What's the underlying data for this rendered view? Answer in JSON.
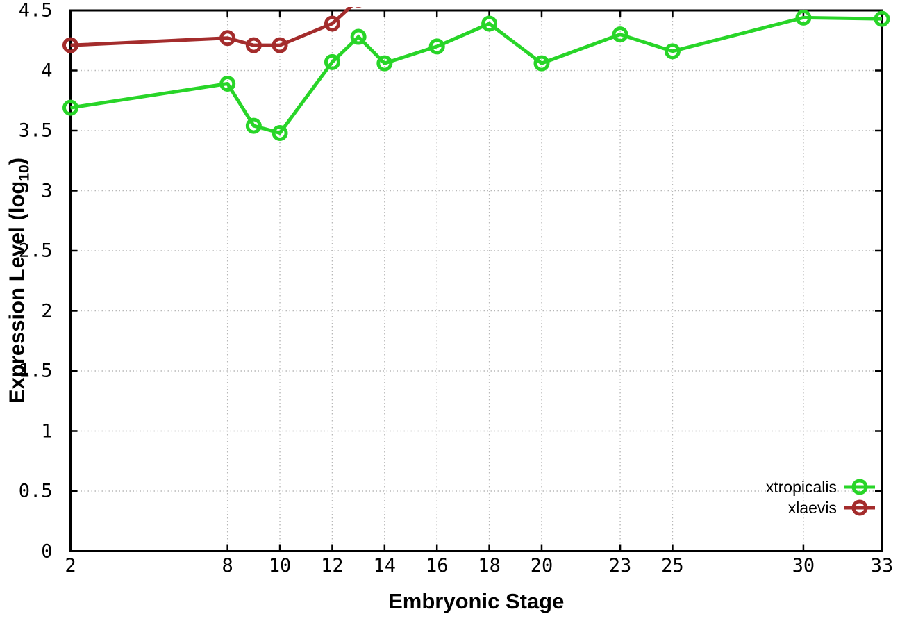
{
  "figure": {
    "x_axis_title": "Embryonic Stage",
    "y_axis_title_prefix": "Expression Level (log",
    "y_axis_title_sub": "10",
    "y_axis_title_suffix": ")"
  },
  "chart_data": {
    "type": "line",
    "title": "",
    "xlabel": "Embryonic Stage",
    "ylabel": "Expression Level (log10)",
    "xlim": [
      2,
      33
    ],
    "ylim": [
      0,
      4.5
    ],
    "xticks": [
      2,
      8,
      10,
      12,
      14,
      16,
      18,
      20,
      23,
      25,
      30,
      33
    ],
    "yticks": [
      0,
      0.5,
      1,
      1.5,
      2,
      2.5,
      3,
      3.5,
      4,
      4.5
    ],
    "grid": true,
    "grid_color": "#b8b8b8",
    "border_color": "#000000",
    "legend_position": "inside-bottom-right",
    "marker": "open-circle",
    "series": [
      {
        "name": "xtropicalis",
        "color": "#28d528",
        "x": [
          2,
          8,
          9,
          10,
          12,
          13,
          14,
          16,
          18,
          20,
          23,
          25,
          30,
          33
        ],
        "y": [
          3.69,
          3.89,
          3.54,
          3.48,
          4.07,
          4.28,
          4.06,
          4.2,
          4.39,
          4.06,
          4.3,
          4.16,
          4.44,
          4.43
        ]
      },
      {
        "name": "xlaevis",
        "color": "#a42c2c",
        "x": [
          2,
          8,
          9,
          10,
          12,
          13
        ],
        "y": [
          4.21,
          4.27,
          4.21,
          4.21,
          4.39,
          4.59
        ],
        "note": "final segment rises above 4.5 and is clipped at the top plot border"
      }
    ]
  }
}
